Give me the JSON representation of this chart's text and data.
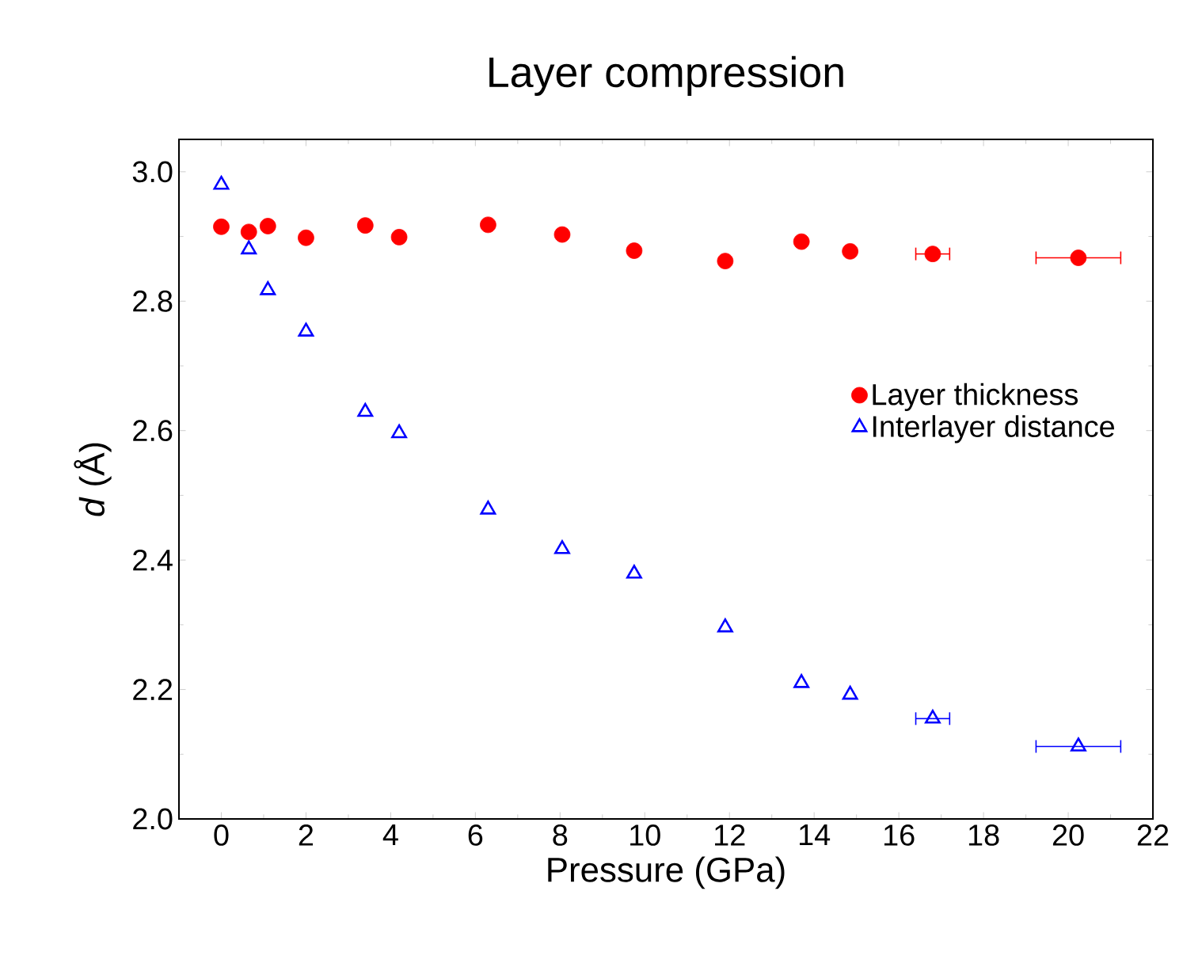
{
  "chart_data": {
    "type": "scatter",
    "title": "Layer compression",
    "xlabel": "Pressure (GPa)",
    "ylabel": "*d* (Å)",
    "xlim": [
      -1,
      22
    ],
    "ylim": [
      2.0,
      3.05
    ],
    "xticks": [
      0,
      2,
      4,
      6,
      8,
      10,
      12,
      14,
      16,
      18,
      20,
      22
    ],
    "yticks": [
      {
        "value": 2.0,
        "label": "2.0"
      },
      {
        "value": 2.2,
        "label": "2.2"
      },
      {
        "value": 2.4,
        "label": "2.4"
      },
      {
        "value": 2.6,
        "label": "2.6"
      },
      {
        "value": 2.8,
        "label": "2.8"
      },
      {
        "value": 3.0,
        "label": "3.0"
      }
    ],
    "legend": "right",
    "grid": false,
    "series": [
      {
        "name": "Layer thickness",
        "color": "#ff0000",
        "marker": "circle",
        "x": [
          0,
          0.65,
          1.1,
          2.0,
          3.4,
          4.2,
          6.3,
          8.05,
          9.75,
          11.9,
          13.7,
          14.85,
          16.8,
          20.24
        ],
        "values": [
          2.915,
          2.907,
          2.916,
          2.898,
          2.917,
          2.899,
          2.918,
          2.903,
          2.878,
          2.862,
          2.892,
          2.877,
          2.873,
          2.867
        ],
        "xerrors": [
          null,
          null,
          null,
          null,
          null,
          null,
          null,
          null,
          null,
          null,
          null,
          null,
          0.4,
          1.0
        ]
      },
      {
        "name": "Interlayer distance",
        "color": "#0000ff",
        "marker": "triangle",
        "x": [
          0,
          0.65,
          1.1,
          2.0,
          3.4,
          4.2,
          6.3,
          8.05,
          9.75,
          11.9,
          13.7,
          14.85,
          16.8,
          20.24
        ],
        "values": [
          2.98,
          2.88,
          2.817,
          2.753,
          2.629,
          2.596,
          2.478,
          2.417,
          2.379,
          2.296,
          2.21,
          2.192,
          2.155,
          2.112
        ],
        "xerrors": [
          null,
          null,
          null,
          null,
          null,
          null,
          null,
          null,
          null,
          null,
          null,
          null,
          0.4,
          1.0
        ]
      }
    ]
  }
}
